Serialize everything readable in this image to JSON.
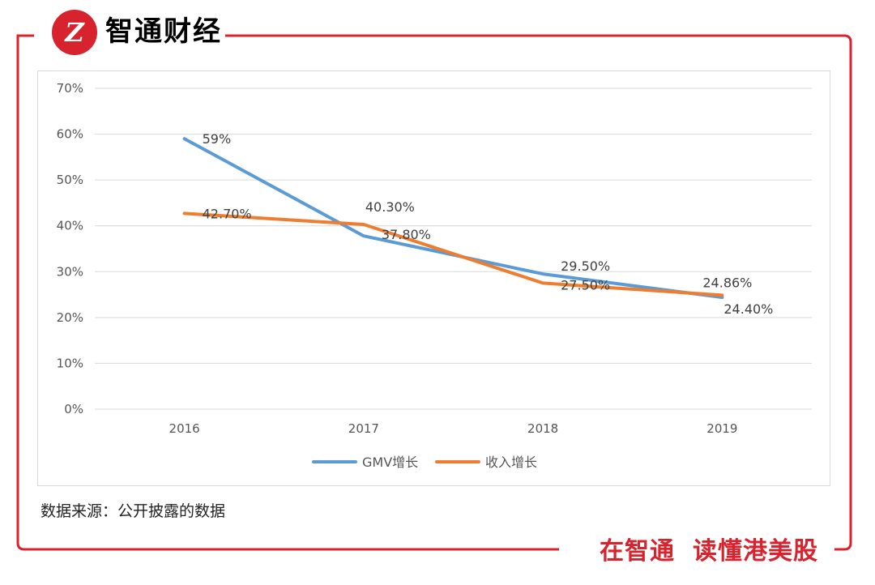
{
  "brand": {
    "logo_letter": "Z",
    "name": "智通财经",
    "slogan_part1": "在智通",
    "slogan_part2": "读懂港美股",
    "color": "#d7232e"
  },
  "source_note": "数据来源：公开披露的数据",
  "chart_data": {
    "type": "line",
    "categories": [
      "2016",
      "2017",
      "2018",
      "2019"
    ],
    "ylim": [
      0,
      70
    ],
    "yticks": [
      0,
      10,
      20,
      30,
      40,
      50,
      60,
      70
    ],
    "ytick_labels": [
      "0%",
      "10%",
      "20%",
      "30%",
      "40%",
      "50%",
      "60%",
      "70%"
    ],
    "grid": true,
    "legend_position": "bottom-center",
    "series": [
      {
        "name": "GMV增长",
        "color": "#5b9bd5",
        "values": [
          59,
          37.8,
          29.5,
          24.4
        ],
        "labels": [
          "59%",
          "37.80%",
          "29.50%",
          "24.40%"
        ]
      },
      {
        "name": "收入增长",
        "color": "#ed7d31",
        "values": [
          42.7,
          40.3,
          27.5,
          24.86
        ],
        "labels": [
          "42.70%",
          "40.30%",
          "27.50%",
          "24.86%"
        ]
      }
    ]
  }
}
